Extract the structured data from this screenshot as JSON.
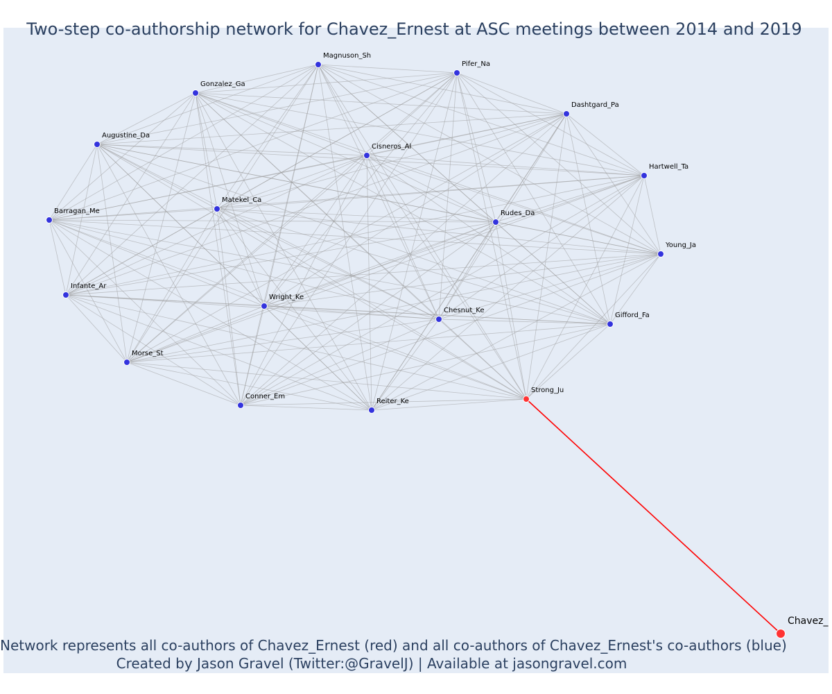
{
  "title": "Two-step co-authorship network for Chavez_Ernest at ASC meetings between 2014 and 2019",
  "captions": {
    "line1": "Network represents all co-authors of Chavez_Ernest (red) and all co-authors of Chavez_Ernest's co-authors (blue)",
    "line2": "Created by Jason Gravel (Twitter:@GravelJ) | Available at jasongravel.com"
  },
  "colors": {
    "background": "#e5ecf6",
    "edge": "#9a9a9a",
    "focal_edge": "#ff0000",
    "coauthor_node": "#3333dd",
    "focal_node": "#ff3333",
    "text": "#2a3f5f"
  },
  "chart_data": {
    "type": "network",
    "focal_author": "Chavez_Ernest",
    "nodes": [
      {
        "id": "Magnuson_Sh",
        "group": "second-step"
      },
      {
        "id": "Pifer_Na",
        "group": "second-step"
      },
      {
        "id": "Gonzalez_Ga",
        "group": "second-step"
      },
      {
        "id": "Dashtgard_Pa",
        "group": "second-step"
      },
      {
        "id": "Augustine_Da",
        "group": "second-step"
      },
      {
        "id": "Cisneros_Al",
        "group": "second-step"
      },
      {
        "id": "Hartwell_Ta",
        "group": "second-step"
      },
      {
        "id": "Barragan_Me",
        "group": "second-step"
      },
      {
        "id": "Matekel_Ca",
        "group": "second-step"
      },
      {
        "id": "Rudes_Da",
        "group": "second-step"
      },
      {
        "id": "Young_Ja",
        "group": "second-step"
      },
      {
        "id": "Infante_Ar",
        "group": "second-step"
      },
      {
        "id": "Wright_Ke",
        "group": "second-step"
      },
      {
        "id": "Chesnut_Ke",
        "group": "second-step"
      },
      {
        "id": "Gifford_Fa",
        "group": "second-step"
      },
      {
        "id": "Morse_St",
        "group": "second-step"
      },
      {
        "id": "Conner_Em",
        "group": "second-step"
      },
      {
        "id": "Reiter_Ke",
        "group": "second-step"
      },
      {
        "id": "Strong_Ju",
        "group": "coauthor"
      },
      {
        "id": "Chavez_Ernest",
        "group": "focal"
      }
    ],
    "edges": [
      {
        "source": "Strong_Ju",
        "target": "Chavez_Ernest",
        "highlight": true
      }
    ],
    "note_edges": "All co-authors in the cluster are fully interconnected"
  }
}
